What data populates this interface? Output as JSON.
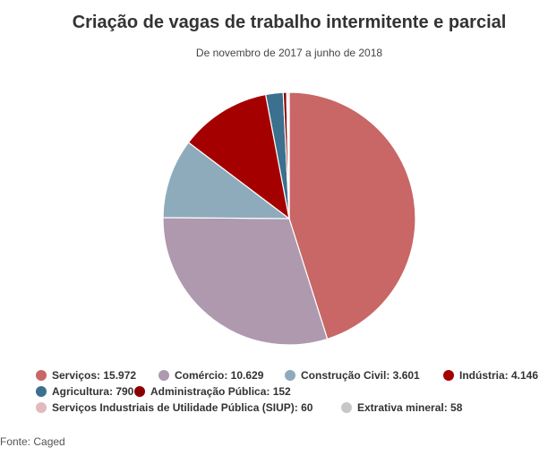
{
  "chart_data": {
    "type": "pie",
    "title": "Criação de vagas de trabalho intermitente e parcial",
    "subtitle": "De novembro de 2017 a junho de 2018",
    "source": "Fonte: Caged",
    "legend_position": "bottom",
    "slices": [
      {
        "label": "Serviços",
        "value": 15972,
        "value_label": "15.972",
        "color": "#c96666"
      },
      {
        "label": "Comércio",
        "value": 10629,
        "value_label": "10.629",
        "color": "#ae99ae"
      },
      {
        "label": "Construção Civil",
        "value": 3601,
        "value_label": "3.601",
        "color": "#8dabbb"
      },
      {
        "label": "Indústria",
        "value": 4146,
        "value_label": "4.146",
        "color": "#a50000"
      },
      {
        "label": "Agricultura",
        "value": 790,
        "value_label": "790",
        "color": "#3b708e"
      },
      {
        "label": "Administração Pública",
        "value": 152,
        "value_label": "152",
        "color": "#8a0000"
      },
      {
        "label": "Serviços Industriais de Utilidade Pública (SIUP)",
        "value": 60,
        "value_label": "60",
        "color": "#e1b9be"
      },
      {
        "label": "Extrativa mineral",
        "value": 58,
        "value_label": "58",
        "color": "#c7c7c7"
      }
    ],
    "draw_order": [
      "Serviços",
      "Comércio",
      "Construção Civil",
      "Indústria",
      "Agricultura",
      "Administração Pública",
      "Extrativa mineral",
      "Serviços Industriais de Utilidade Pública (SIUP)"
    ]
  }
}
